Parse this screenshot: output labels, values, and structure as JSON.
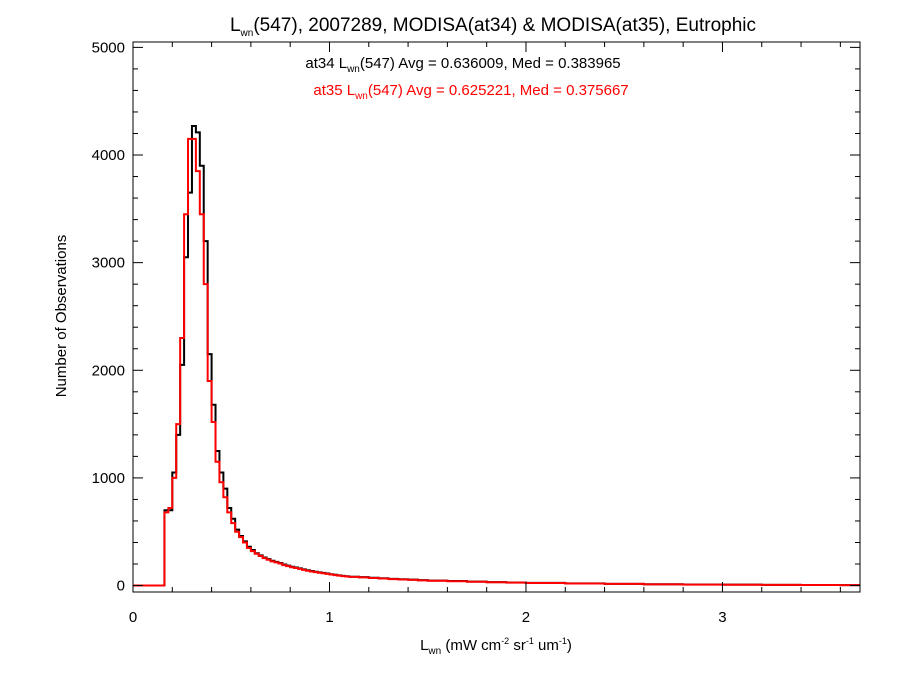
{
  "chart_data": {
    "type": "histogram-step",
    "title": {
      "before": "L",
      "sub": "wn",
      "after": "(547), 2007289, MODISA(at34) & MODISA(at35), Eutrophic"
    },
    "xlabel": {
      "p1": "L",
      "p1_sub": "wn",
      "p2": " (mW cm",
      "sup1": "-2",
      "p3": " sr",
      "sup2": "-1",
      "p4": " um",
      "sup3": "-1",
      "p5": ")"
    },
    "ylabel": "Number of Observations",
    "xlim": [
      0,
      3.7
    ],
    "ylim": [
      -60,
      5050
    ],
    "x_ticks": [
      0,
      1,
      2,
      3
    ],
    "x_tick_labels": [
      "0",
      "1",
      "2",
      "3"
    ],
    "y_ticks": [
      0,
      1000,
      2000,
      3000,
      4000,
      5000
    ],
    "y_tick_labels": [
      "0",
      "1000",
      "2000",
      "3000",
      "4000",
      "5000"
    ],
    "x_minor_step": 0.2,
    "y_minor_step": 200,
    "bin_width": 0.02,
    "annotations": [
      {
        "series": "at34",
        "color": "#000000",
        "p1": "at34 L",
        "sub": "wn",
        "p2": "(547) Avg = 0.636009, Med = 0.383965"
      },
      {
        "series": "at35",
        "color": "#ff0000",
        "p1": "at35 L",
        "sub": "wn",
        "p2": "(547) Avg = 0.625221, Med = 0.375667"
      }
    ],
    "series": [
      {
        "id": "at34",
        "color": "#000000",
        "x": [
          0,
          0.16,
          0.18,
          0.2,
          0.22,
          0.24,
          0.26,
          0.28,
          0.3,
          0.32,
          0.34,
          0.36,
          0.38,
          0.4,
          0.42,
          0.44,
          0.46,
          0.48,
          0.5,
          0.52,
          0.54,
          0.56,
          0.58,
          0.6,
          0.62,
          0.64,
          0.66,
          0.68,
          0.7,
          0.72,
          0.74,
          0.76,
          0.78,
          0.8,
          0.82,
          0.84,
          0.86,
          0.88,
          0.9,
          0.92,
          0.94,
          0.96,
          0.98,
          1.0,
          1.02,
          1.04,
          1.06,
          1.08,
          1.1,
          1.15,
          1.2,
          1.25,
          1.3,
          1.35,
          1.4,
          1.45,
          1.5,
          1.6,
          1.7,
          1.8,
          1.9,
          2.0,
          2.2,
          2.4,
          2.6,
          2.8,
          3.0,
          3.2,
          3.4,
          3.6,
          3.7
        ],
        "values": [
          0,
          700,
          700,
          1050,
          1400,
          2050,
          3050,
          3650,
          4270,
          4210,
          3900,
          3200,
          2150,
          1680,
          1250,
          1050,
          900,
          720,
          620,
          520,
          460,
          410,
          360,
          330,
          300,
          280,
          260,
          245,
          230,
          220,
          210,
          195,
          185,
          175,
          168,
          160,
          150,
          142,
          135,
          128,
          122,
          118,
          112,
          105,
          100,
          95,
          90,
          86,
          82,
          78,
          72,
          68,
          62,
          58,
          55,
          50,
          46,
          42,
          36,
          32,
          28,
          25,
          20,
          16,
          12,
          10,
          8,
          6,
          5,
          4,
          4
        ]
      },
      {
        "id": "at35",
        "color": "#ff0000",
        "x": [
          0,
          0.16,
          0.18,
          0.2,
          0.22,
          0.24,
          0.26,
          0.28,
          0.3,
          0.32,
          0.34,
          0.36,
          0.38,
          0.4,
          0.42,
          0.44,
          0.46,
          0.48,
          0.5,
          0.52,
          0.54,
          0.56,
          0.58,
          0.6,
          0.62,
          0.64,
          0.66,
          0.68,
          0.7,
          0.72,
          0.74,
          0.76,
          0.78,
          0.8,
          0.82,
          0.84,
          0.86,
          0.88,
          0.9,
          0.92,
          0.94,
          0.96,
          0.98,
          1.0,
          1.02,
          1.04,
          1.06,
          1.08,
          1.1,
          1.15,
          1.2,
          1.25,
          1.3,
          1.35,
          1.4,
          1.45,
          1.5,
          1.6,
          1.7,
          1.8,
          1.9,
          2.0,
          2.2,
          2.4,
          2.6,
          2.8,
          3.0,
          3.2,
          3.4,
          3.6,
          3.7
        ],
        "values": [
          0,
          680,
          720,
          1000,
          1500,
          2300,
          3450,
          4150,
          4150,
          3850,
          3450,
          2800,
          1900,
          1520,
          1150,
          960,
          820,
          680,
          580,
          500,
          450,
          400,
          350,
          320,
          295,
          275,
          255,
          240,
          225,
          215,
          205,
          190,
          180,
          170,
          163,
          155,
          146,
          138,
          131,
          125,
          119,
          114,
          108,
          102,
          97,
          92,
          88,
          84,
          80,
          76,
          70,
          66,
          60,
          56,
          53,
          48,
          44,
          40,
          35,
          31,
          27,
          24,
          19,
          15,
          11,
          9,
          7,
          6,
          5,
          4,
          4
        ]
      }
    ]
  }
}
